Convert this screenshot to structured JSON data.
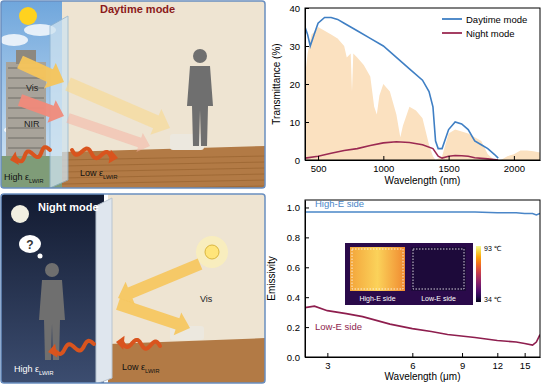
{
  "illustrations": [
    {
      "title": "Daytime mode",
      "vis": "Vis",
      "nir": "NIR",
      "high_emissivity": {
        "text": "High ε",
        "sub": "LWIR"
      },
      "low_emissivity": {
        "text": "Low ε",
        "sub": "LWIR"
      }
    },
    {
      "title": "Night mode",
      "vis": "Vis",
      "question": "?",
      "high_emissivity": {
        "text": "High ε",
        "sub": "LWIR"
      },
      "low_emissivity": {
        "text": "Low ε",
        "sub": "LWIR"
      }
    }
  ],
  "chart_data": [
    {
      "type": "line",
      "x_label": "Wavelength (nm)",
      "y_label": "Transmittance (%)",
      "xlim": [
        400,
        2200
      ],
      "xticks": [
        500,
        1000,
        1500,
        2000
      ],
      "ylim": [
        0,
        40
      ],
      "yticks": [
        0,
        10,
        20,
        30,
        40
      ],
      "legend": "upper right",
      "series": [
        {
          "type": "area",
          "color": "#fbe1c0",
          "x": [
            400,
            420,
            450,
            480,
            500,
            550,
            600,
            650,
            700,
            720,
            750,
            760,
            770,
            800,
            850,
            900,
            930,
            950,
            970,
            1000,
            1050,
            1100,
            1130,
            1150,
            1200,
            1250,
            1300,
            1350,
            1380,
            1400,
            1450,
            1500,
            1550,
            1600,
            1650,
            1700,
            1750,
            1800,
            1850,
            1900,
            1950,
            2000,
            2050,
            2100,
            2150,
            2200
          ],
          "values": [
            22,
            28,
            33,
            34,
            35,
            34,
            33,
            32,
            30,
            27,
            28,
            18,
            28,
            27,
            25,
            22,
            14,
            12,
            17,
            20,
            18,
            12,
            6,
            9,
            14,
            13,
            11,
            4,
            1,
            0,
            1,
            7,
            8,
            7.5,
            7,
            6,
            5,
            1.5,
            0,
            0,
            1,
            1.5,
            2.5,
            2.5,
            2.3,
            2
          ]
        },
        {
          "name": "Daytime mode",
          "color": "#3f7fc4",
          "x": [
            400,
            420,
            440,
            470,
            500,
            550,
            600,
            650,
            700,
            800,
            900,
            1000,
            1100,
            1200,
            1300,
            1350,
            1380,
            1400,
            1420,
            1450,
            1500,
            1550,
            1600,
            1650,
            1700,
            1750,
            1800,
            1850,
            1880
          ],
          "values": [
            35,
            33,
            30,
            33,
            36,
            37.5,
            37.5,
            37,
            36,
            34,
            32,
            30,
            27,
            24,
            21,
            18,
            14,
            5,
            3,
            3,
            8,
            10,
            9.5,
            8,
            5,
            4,
            3,
            1.5,
            0.5
          ]
        },
        {
          "name": "Night mode",
          "color": "#9b2a52",
          "x": [
            400,
            500,
            600,
            700,
            800,
            900,
            1000,
            1100,
            1200,
            1300,
            1380,
            1420,
            1450,
            1500,
            1550,
            1600,
            1650,
            1700,
            1800,
            1880
          ],
          "values": [
            0.5,
            1,
            1.8,
            2.5,
            3,
            3.8,
            4.5,
            4.8,
            4.6,
            4,
            3,
            1,
            0.5,
            1,
            1.2,
            1.1,
            1,
            0.6,
            0.3,
            0
          ]
        }
      ]
    },
    {
      "type": "line",
      "log": "x",
      "x_label": "Wavelength (μm)",
      "y_label": "Emissivity",
      "xlim": [
        2.5,
        17
      ],
      "xticks": [
        3,
        6,
        9,
        12,
        15
      ],
      "ylim": [
        0,
        1.05
      ],
      "yticks": [
        {
          "value": 0,
          "label": "0.0"
        },
        {
          "value": 0.2,
          "label": "0.2"
        },
        {
          "value": 0.4,
          "label": "0.4"
        },
        {
          "value": 0.6,
          "label": "0.6"
        },
        {
          "value": 0.8,
          "label": "0.8"
        },
        {
          "value": 1,
          "label": "1.0"
        }
      ],
      "series": [
        {
          "name": "High-E side",
          "color": "#4a86c8",
          "x": [
            2.5,
            3,
            4,
            5,
            6,
            8,
            10,
            12,
            14,
            15,
            16,
            16.5,
            17
          ],
          "values": [
            0.97,
            0.97,
            0.97,
            0.97,
            0.97,
            0.97,
            0.97,
            0.965,
            0.965,
            0.96,
            0.96,
            0.95,
            0.96
          ]
        },
        {
          "name": "Low-E side",
          "color": "#8e1e4e",
          "x": [
            2.5,
            2.7,
            3,
            3.5,
            4,
            5,
            6,
            7,
            8,
            10,
            12,
            14,
            15,
            16,
            16.5,
            17
          ],
          "values": [
            0.33,
            0.34,
            0.31,
            0.29,
            0.27,
            0.22,
            0.19,
            0.17,
            0.15,
            0.13,
            0.11,
            0.1,
            0.09,
            0.08,
            0.1,
            0.15
          ]
        }
      ],
      "inset": {
        "labels": [
          "High-E side",
          "Low-E side"
        ],
        "colorbar_max": {
          "value": 93,
          "label": "93 ℃"
        },
        "colorbar_min": {
          "value": 34,
          "label": "34 ℃"
        }
      }
    }
  ]
}
